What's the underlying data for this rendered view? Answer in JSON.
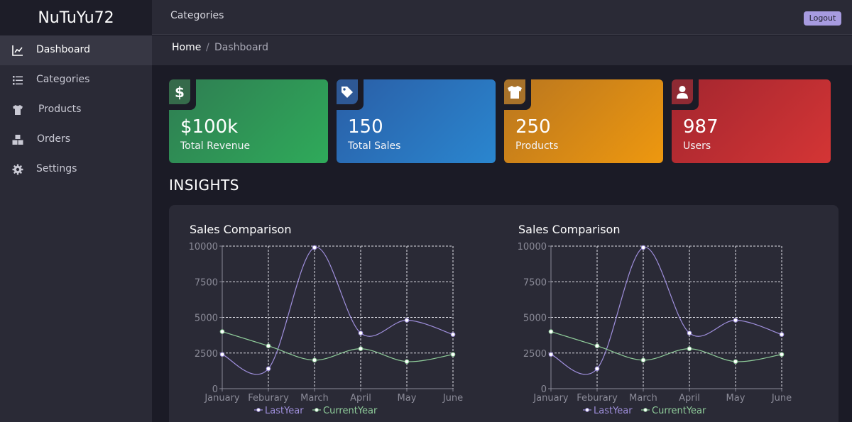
{
  "brand": "NuTuYu72",
  "sidebar": {
    "items": [
      {
        "label": "Dashboard",
        "icon": "line-chart-icon",
        "active": true
      },
      {
        "label": "Categories",
        "icon": "list-icon",
        "active": false
      },
      {
        "label": "Products",
        "icon": "shirt-icon",
        "active": false
      },
      {
        "label": "Orders",
        "icon": "boxes-icon",
        "active": false
      },
      {
        "label": "Settings",
        "icon": "gear-icon",
        "active": false
      }
    ]
  },
  "header": {
    "title": "Categories",
    "logout_label": "Logout"
  },
  "breadcrumb": {
    "home": "Home",
    "separator": "/",
    "current": "Dashboard"
  },
  "cards": [
    {
      "value": "$100k",
      "label": "Total Revenue",
      "icon": "dollar-icon",
      "colors": [
        "#2f7d52",
        "#2faa5a"
      ],
      "icon_bg": "#356a4a"
    },
    {
      "value": "150",
      "label": "Total Sales",
      "icon": "tag-icon",
      "colors": [
        "#2a5ea6",
        "#2a86cf"
      ],
      "icon_bg": "#2e5895"
    },
    {
      "value": "250",
      "label": "Products",
      "icon": "shirt-icon",
      "colors": [
        "#b9761f",
        "#ee980f"
      ],
      "icon_bg": "#a8722a"
    },
    {
      "value": "987",
      "label": "Users",
      "icon": "user-icon",
      "colors": [
        "#a3262f",
        "#d43535"
      ],
      "icon_bg": "#8e2a33"
    }
  ],
  "insights_title": "INSIGHTS",
  "colors": {
    "last_year": "#9f8fdc",
    "current_year": "#8fcc9a",
    "grid": "#e0e0e8",
    "axis_text": "#8b8b98"
  },
  "chart_data": [
    {
      "type": "line",
      "title": "Sales Comparison",
      "categories": [
        "January",
        "Feburary",
        "March",
        "April",
        "May",
        "June"
      ],
      "ylim": [
        0,
        10000
      ],
      "yticks": [
        0,
        2500,
        5000,
        7500,
        10000
      ],
      "grid": true,
      "legend": "bottom",
      "series": [
        {
          "name": "LastYear",
          "values": [
            2400,
            1400,
            9900,
            3900,
            4800,
            3800
          ]
        },
        {
          "name": "CurrentYear",
          "values": [
            4000,
            3000,
            2000,
            2800,
            1900,
            2400
          ]
        }
      ]
    },
    {
      "type": "line",
      "title": "Sales Comparison",
      "categories": [
        "January",
        "Feburary",
        "March",
        "April",
        "May",
        "June"
      ],
      "ylim": [
        0,
        10000
      ],
      "yticks": [
        0,
        2500,
        5000,
        7500,
        10000
      ],
      "grid": true,
      "legend": "bottom",
      "series": [
        {
          "name": "LastYear",
          "values": [
            2400,
            1400,
            9900,
            3900,
            4800,
            3800
          ]
        },
        {
          "name": "CurrentYear",
          "values": [
            4000,
            3000,
            2000,
            2800,
            1900,
            2400
          ]
        }
      ]
    }
  ]
}
